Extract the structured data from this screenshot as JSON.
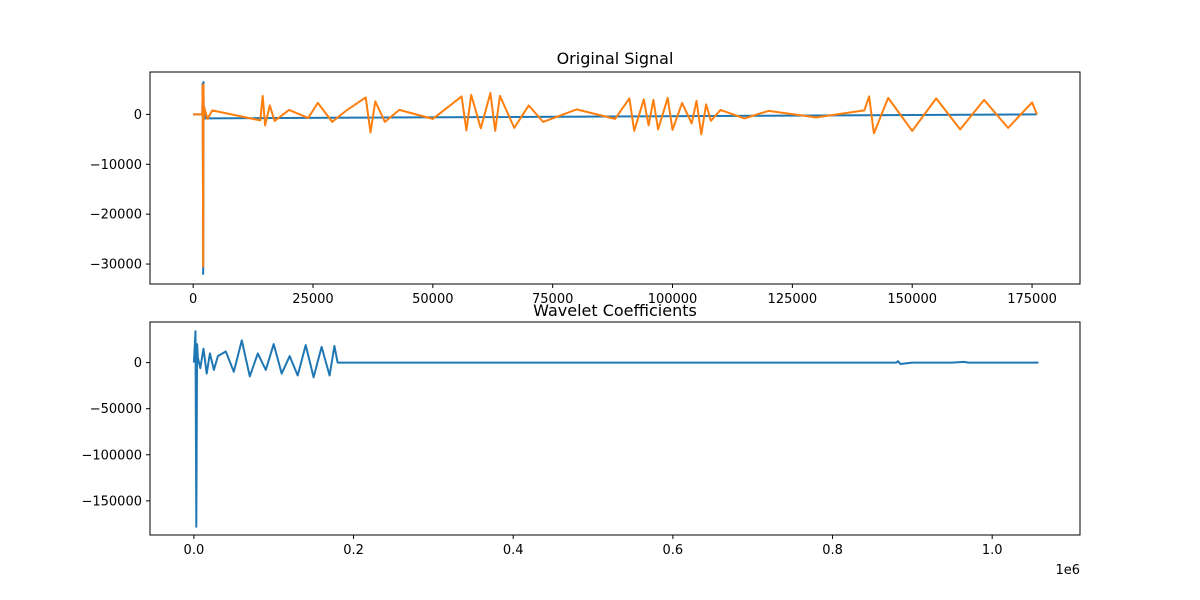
{
  "chart_data": [
    {
      "type": "line",
      "title": "Original Signal",
      "xlabel": "",
      "ylabel": "",
      "xlim": [
        -9000,
        185000
      ],
      "ylim": [
        -34000,
        8500
      ],
      "grid": false,
      "xticks": [
        0,
        25000,
        50000,
        75000,
        100000,
        125000,
        150000,
        175000
      ],
      "xtick_labels": [
        "0",
        "25000",
        "50000",
        "75000",
        "100000",
        "125000",
        "150000",
        "175000"
      ],
      "yticks": [
        0,
        -10000,
        -20000,
        -30000
      ],
      "ytick_labels": [
        "0",
        "−10000",
        "−20000",
        "−30000"
      ],
      "series": [
        {
          "color": "#1f77b4",
          "x": [
            0,
            1900,
            2000,
            2100,
            2150,
            2200,
            2300,
            2500,
            176000
          ],
          "y": [
            0,
            0,
            6200,
            -32000,
            6500,
            -1200,
            1500,
            -800,
            0
          ]
        },
        {
          "color": "#ff7f0e",
          "x": [
            0,
            1900,
            2000,
            2100,
            2150,
            2200,
            2300,
            3000,
            4000,
            14000,
            14500,
            15000,
            16000,
            17000,
            20000,
            24000,
            26000,
            29000,
            32000,
            36000,
            37000,
            38000,
            40000,
            43000,
            50000,
            56000,
            57000,
            58000,
            60000,
            62000,
            63000,
            64000,
            67000,
            70000,
            73000,
            80000,
            88000,
            91000,
            92000,
            94000,
            95000,
            96000,
            97000,
            99000,
            100000,
            102000,
            104000,
            105000,
            106000,
            107000,
            108000,
            110000,
            115000,
            120000,
            130000,
            140000,
            141000,
            142000,
            145000,
            150000,
            155000,
            160000,
            165000,
            170000,
            175000,
            176000
          ],
          "y": [
            0,
            0,
            5800,
            -30500,
            6000,
            -1000,
            1400,
            -900,
            800,
            -1200,
            3700,
            -2200,
            1800,
            -1300,
            900,
            -700,
            2300,
            -1500,
            800,
            3400,
            -3600,
            2600,
            -1500,
            900,
            -900,
            3600,
            -3200,
            3900,
            -2800,
            4300,
            -3300,
            3700,
            -2700,
            1800,
            -1500,
            1000,
            -900,
            3200,
            -3300,
            3000,
            -2200,
            2900,
            -3000,
            3300,
            -3100,
            2300,
            -1800,
            2700,
            -4000,
            2000,
            -1300,
            900,
            -800,
            700,
            -600,
            800,
            3600,
            -3800,
            3300,
            -3300,
            3200,
            -3000,
            2900,
            -2700,
            2400,
            0
          ]
        }
      ]
    },
    {
      "type": "line",
      "title": "Wavelet Coefficients",
      "xlabel": "",
      "ylabel": "",
      "x_offset_label": "1e6",
      "xlim": [
        -0.055,
        1.11
      ],
      "ylim": [
        -187000,
        44000
      ],
      "grid": false,
      "xticks": [
        0.0,
        0.2,
        0.4,
        0.6,
        0.8,
        1.0
      ],
      "xtick_labels": [
        "0.0",
        "0.2",
        "0.4",
        "0.6",
        "0.8",
        "1.0"
      ],
      "yticks": [
        0,
        -50000,
        -100000,
        -150000
      ],
      "ytick_labels": [
        "0",
        "−50000",
        "−100000",
        "−150000"
      ],
      "series": [
        {
          "color": "#1f77b4",
          "x": [
            0.0,
            0.002,
            0.003,
            0.004,
            0.005,
            0.008,
            0.012,
            0.016,
            0.02,
            0.025,
            0.03,
            0.04,
            0.05,
            0.06,
            0.07,
            0.08,
            0.09,
            0.1,
            0.11,
            0.12,
            0.13,
            0.14,
            0.15,
            0.16,
            0.17,
            0.176,
            0.18,
            0.3,
            0.5,
            0.7,
            0.88,
            0.882,
            0.885,
            0.9,
            0.95,
            0.965,
            0.97,
            1.058
          ],
          "y": [
            0,
            34000,
            -178000,
            20000,
            5000,
            -6000,
            15000,
            -12000,
            10000,
            -8000,
            7000,
            12000,
            -10000,
            24000,
            -15000,
            10000,
            -8000,
            20000,
            -12000,
            7000,
            -14000,
            19000,
            -16000,
            17000,
            -14000,
            18000,
            0,
            0,
            0,
            0,
            0,
            1500,
            -1500,
            0,
            0,
            700,
            0,
            0
          ]
        }
      ]
    }
  ]
}
